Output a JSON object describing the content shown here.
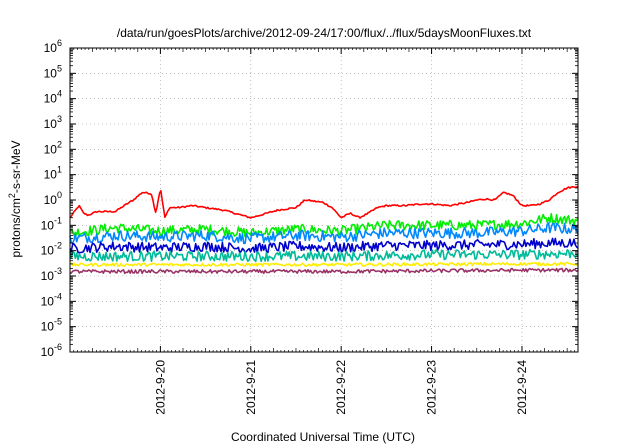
{
  "chart_data": {
    "type": "line",
    "title": "/data/run/goesPlots/archive/2012-09-24/17:00/flux/../flux/5daysMoonFluxes.txt",
    "xlabel": "Coordinated Universal Time (UTC)",
    "ylabel": {
      "base": "protons/cm",
      "sup": "2",
      "rest": "-s-sr-MeV"
    },
    "y_scale": "log",
    "ylim_exponents": [
      -6,
      6
    ],
    "y_ticks": [
      {
        "base": "10",
        "exp": "6"
      },
      {
        "base": "10",
        "exp": "5"
      },
      {
        "base": "10",
        "exp": "4"
      },
      {
        "base": "10",
        "exp": "3"
      },
      {
        "base": "10",
        "exp": "2"
      },
      {
        "base": "10",
        "exp": "1"
      },
      {
        "base": "10",
        "exp": "0"
      },
      {
        "base": "10",
        "exp": "-1"
      },
      {
        "base": "10",
        "exp": "-2"
      },
      {
        "base": "10",
        "exp": "-3"
      },
      {
        "base": "10",
        "exp": "-4"
      },
      {
        "base": "10",
        "exp": "-5"
      },
      {
        "base": "10",
        "exp": "-6"
      }
    ],
    "x_range_days": [
      0,
      5.62
    ],
    "x_ticks": [
      {
        "label": "2012-9-20",
        "day": 1.0
      },
      {
        "label": "2012-9-21",
        "day": 2.0
      },
      {
        "label": "2012-9-22",
        "day": 3.0
      },
      {
        "label": "2012-9-23",
        "day": 4.0
      },
      {
        "label": "2012-9-24",
        "day": 5.0
      }
    ],
    "grid": true,
    "series": [
      {
        "color": "#ff0000",
        "noise": 0.03,
        "x": [
          0,
          0.1,
          0.15,
          0.2,
          0.3,
          0.5,
          0.6,
          0.7,
          0.8,
          0.9,
          0.95,
          1.0,
          1.05,
          1.1,
          1.2,
          1.35,
          1.5,
          1.7,
          1.9,
          2.0,
          2.1,
          2.3,
          2.5,
          2.6,
          2.7,
          2.8,
          2.9,
          3.0,
          3.1,
          3.2,
          3.3,
          3.4,
          3.5,
          3.7,
          3.9,
          4.0,
          4.2,
          4.4,
          4.5,
          4.6,
          4.7,
          4.8,
          4.9,
          5.0,
          5.1,
          5.2,
          5.3,
          5.4,
          5.5,
          5.62
        ],
        "y": [
          0.2,
          0.6,
          0.3,
          0.25,
          0.35,
          0.35,
          0.6,
          1.0,
          2.0,
          1.8,
          0.3,
          3.0,
          0.2,
          0.5,
          0.5,
          0.6,
          0.5,
          0.4,
          0.25,
          0.2,
          0.25,
          0.4,
          0.5,
          1.0,
          0.9,
          0.8,
          0.5,
          0.2,
          0.3,
          0.2,
          0.3,
          0.5,
          0.6,
          0.6,
          0.7,
          0.7,
          0.6,
          0.8,
          1.0,
          1.1,
          1.0,
          2.0,
          1.5,
          0.6,
          0.6,
          0.7,
          1.0,
          2.0,
          3.0,
          3.5
        ]
      },
      {
        "color": "#00ee00",
        "noise": 0.2,
        "x": [
          0,
          0.5,
          1.0,
          1.5,
          2.0,
          2.5,
          3.0,
          3.5,
          4.0,
          4.5,
          5.0,
          5.3,
          5.62
        ],
        "y": [
          0.05,
          0.08,
          0.06,
          0.07,
          0.05,
          0.07,
          0.06,
          0.1,
          0.1,
          0.1,
          0.12,
          0.2,
          0.15
        ]
      },
      {
        "color": "#0088ff",
        "noise": 0.22,
        "x": [
          0,
          0.5,
          1.0,
          1.5,
          2.0,
          2.5,
          3.0,
          3.5,
          4.0,
          4.5,
          5.0,
          5.3,
          5.62
        ],
        "y": [
          0.03,
          0.04,
          0.035,
          0.04,
          0.03,
          0.04,
          0.035,
          0.05,
          0.05,
          0.05,
          0.06,
          0.08,
          0.07
        ]
      },
      {
        "color": "#0000cc",
        "noise": 0.2,
        "x": [
          0,
          0.5,
          1.0,
          1.5,
          2.0,
          2.5,
          3.0,
          3.5,
          4.0,
          4.5,
          5.0,
          5.3,
          5.62
        ],
        "y": [
          0.012,
          0.015,
          0.013,
          0.015,
          0.012,
          0.015,
          0.013,
          0.016,
          0.016,
          0.017,
          0.018,
          0.02,
          0.02
        ]
      },
      {
        "color": "#00bb99",
        "noise": 0.2,
        "x": [
          0,
          1.0,
          2.0,
          3.0,
          4.0,
          5.0,
          5.62
        ],
        "y": [
          0.006,
          0.006,
          0.006,
          0.006,
          0.007,
          0.007,
          0.008
        ]
      },
      {
        "color": "#ffee00",
        "noise": 0.06,
        "x": [
          0,
          1.0,
          2.0,
          3.0,
          4.0,
          5.0,
          5.62
        ],
        "y": [
          0.0028,
          0.0028,
          0.0028,
          0.0028,
          0.0029,
          0.003,
          0.003
        ]
      },
      {
        "color": "#993366",
        "noise": 0.07,
        "x": [
          0,
          1.0,
          2.0,
          3.0,
          4.0,
          5.0,
          5.62
        ],
        "y": [
          0.0015,
          0.0015,
          0.0015,
          0.0015,
          0.0016,
          0.0017,
          0.0017
        ]
      }
    ]
  }
}
